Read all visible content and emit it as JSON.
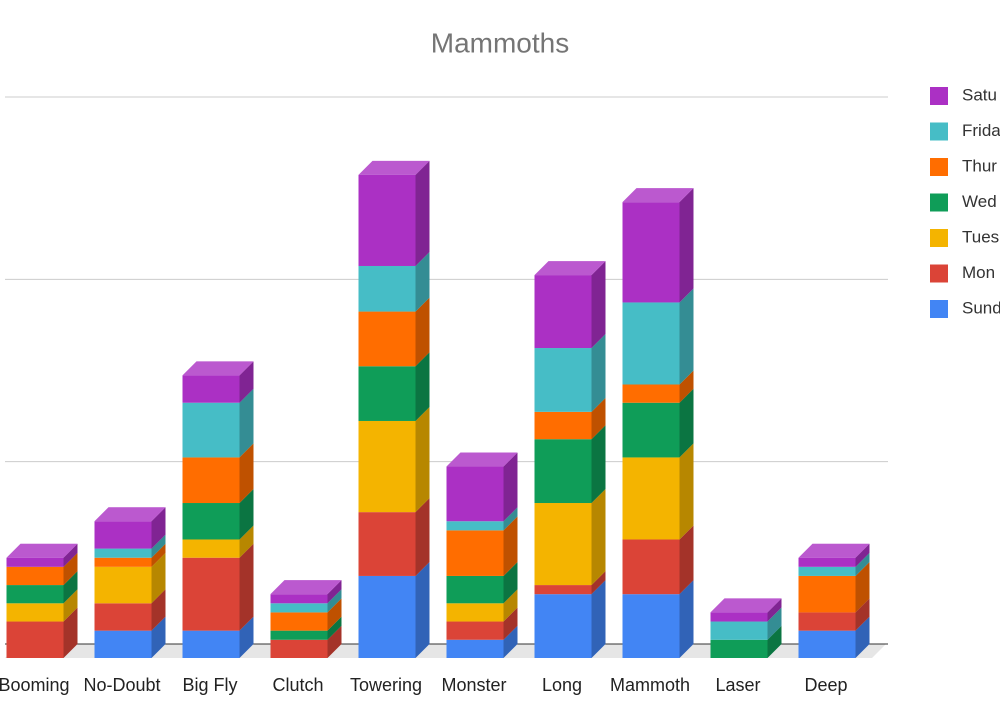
{
  "chart_data": {
    "type": "bar3d_stacked",
    "title": "Mammoths",
    "categories": [
      "Booming",
      "No-Doubt",
      "Big Fly",
      "Clutch",
      "Towering",
      "Monster",
      "Long",
      "Mammoth",
      "Laser",
      "Deep"
    ],
    "series": [
      {
        "name": "Sund",
        "color": "#4285f4",
        "values": [
          0,
          1.5,
          1.5,
          0,
          4.5,
          1,
          3.5,
          3.5,
          0,
          1.5
        ]
      },
      {
        "name": "Mon",
        "color": "#db4437",
        "values": [
          2,
          1.5,
          4,
          1,
          3.5,
          1,
          0.5,
          3,
          0,
          1
        ]
      },
      {
        "name": "Tues",
        "color": "#f4b400",
        "values": [
          1,
          2,
          1,
          0,
          5,
          1,
          4.5,
          4.5,
          0,
          0
        ]
      },
      {
        "name": "Wed",
        "color": "#0f9d58",
        "values": [
          1,
          0,
          2,
          0.5,
          3,
          1.5,
          3.5,
          3,
          1,
          0
        ]
      },
      {
        "name": "Thur",
        "color": "#ff6d00",
        "values": [
          1,
          0.5,
          2.5,
          1,
          3,
          2.5,
          1.5,
          1,
          0,
          2
        ]
      },
      {
        "name": "Frida",
        "color": "#46bdc6",
        "values": [
          0,
          0.5,
          3,
          0.5,
          2.5,
          0.5,
          3.5,
          4.5,
          1,
          0.5
        ]
      },
      {
        "name": "Satu",
        "color": "#ab30c4",
        "values": [
          0.5,
          1.5,
          1.5,
          0.5,
          5,
          3,
          4,
          5.5,
          0.5,
          0.5
        ]
      }
    ],
    "ylim": [
      0,
      30
    ],
    "yticks": [
      0,
      10,
      20,
      30
    ],
    "grid": true,
    "legend": "right"
  }
}
